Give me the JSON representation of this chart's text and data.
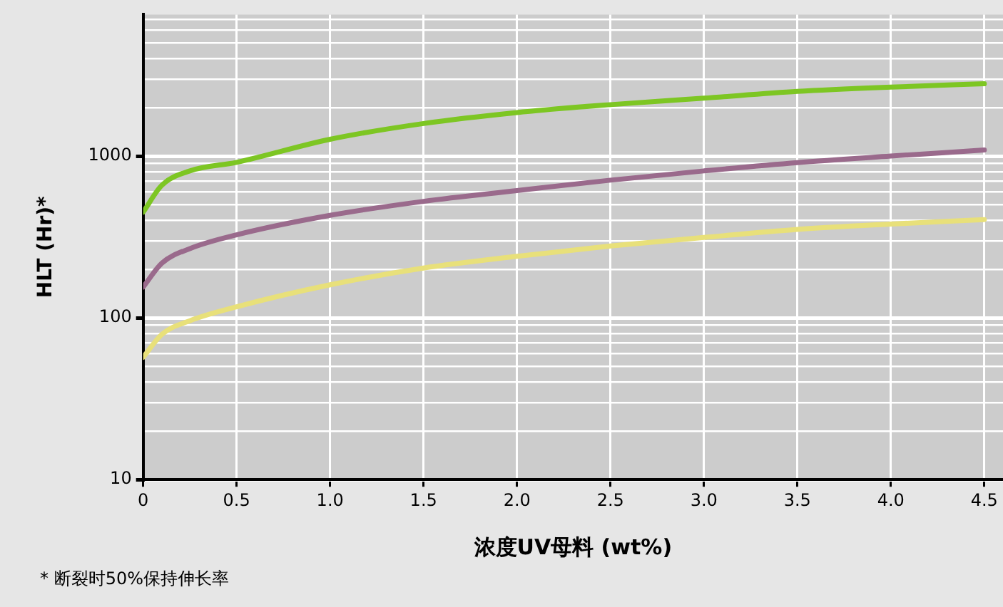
{
  "chart_data": {
    "type": "line",
    "ylabel": "HLT (Hr)*",
    "xlabel": "浓度UV母料 (wt%)",
    "annotations": [
      "*  断裂时50%保持伸长率"
    ],
    "log": "y",
    "grid": true,
    "legend": false,
    "marker": "none",
    "line_style": "solid",
    "xlim": [
      0,
      4.6
    ],
    "ylim": [
      10,
      7500
    ],
    "xticks": [
      0,
      0.5,
      {
        "value": 1,
        "label": "1.0"
      },
      1.5,
      {
        "value": 2,
        "label": "2.0"
      },
      2.5,
      {
        "value": 3,
        "label": "3.0"
      },
      3.5,
      {
        "value": 4,
        "label": "4.0"
      },
      4.5
    ],
    "yticks": [
      10,
      {
        "value": 20,
        "label": null
      },
      {
        "value": 30,
        "label": null
      },
      {
        "value": 40,
        "label": null
      },
      {
        "value": 50,
        "label": null
      },
      {
        "value": 60,
        "label": null
      },
      {
        "value": 70,
        "label": null
      },
      {
        "value": 80,
        "label": null
      },
      {
        "value": 90,
        "label": null
      },
      100,
      {
        "value": 200,
        "label": null
      },
      {
        "value": 300,
        "label": null
      },
      {
        "value": 400,
        "label": null
      },
      {
        "value": 500,
        "label": null
      },
      {
        "value": 600,
        "label": null
      },
      {
        "value": 700,
        "label": null
      },
      {
        "value": 800,
        "label": null
      },
      {
        "value": 900,
        "label": null
      },
      1000,
      {
        "value": 2000,
        "label": null
      },
      {
        "value": 3000,
        "label": null
      },
      {
        "value": 4000,
        "label": null
      },
      {
        "value": 5000,
        "label": null
      },
      {
        "value": 6000,
        "label": null
      },
      {
        "value": 7000,
        "label": null
      }
    ],
    "x": [
      0,
      0.1,
      0.25,
      0.5,
      1,
      1.5,
      2,
      2.5,
      3,
      3.5,
      4,
      4.5
    ],
    "series": [
      {
        "color": "#7dc623",
        "values": [
          450,
          660,
          810,
          915,
          1270,
          1590,
          1860,
          2080,
          2280,
          2510,
          2670,
          2800
        ]
      },
      {
        "color": "#9a6a8c",
        "values": [
          155,
          218,
          268,
          326,
          430,
          525,
          612,
          710,
          810,
          912,
          1000,
          1090
        ]
      },
      {
        "color": "#e8e07a",
        "values": [
          57,
          79,
          96,
          117,
          160,
          203,
          240,
          278,
          314,
          352,
          380,
          405
        ]
      }
    ]
  }
}
